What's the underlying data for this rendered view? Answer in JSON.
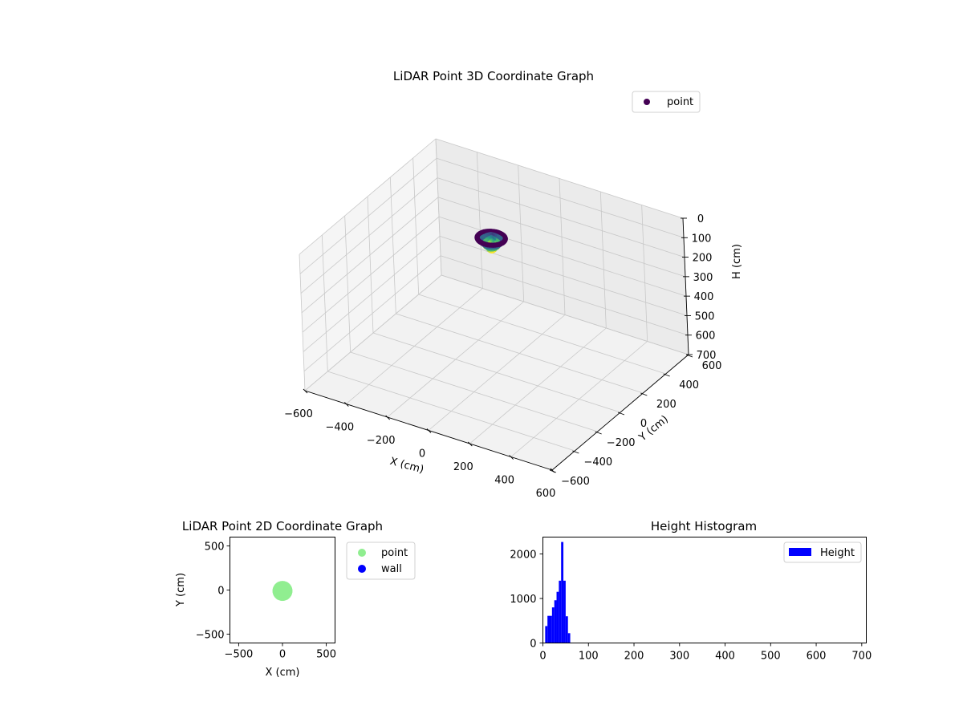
{
  "chart_data": [
    {
      "type": "scatter",
      "projection": "3d",
      "title": "LiDAR Point 3D Coordinate Graph",
      "xlabel": "X (cm)",
      "ylabel": "Y (cm)",
      "zlabel": "H (cm)",
      "xlim": [
        -600,
        600
      ],
      "ylim": [
        -600,
        600
      ],
      "zlim": [
        0,
        700
      ],
      "z_inverted": true,
      "xticks": [
        -600,
        -400,
        -200,
        0,
        200,
        400,
        600
      ],
      "yticks": [
        -600,
        -400,
        -200,
        0,
        200,
        400,
        600
      ],
      "zticks": [
        0,
        100,
        200,
        300,
        400,
        500,
        600,
        700
      ],
      "legend": {
        "position": "top-right",
        "entries": [
          {
            "label": "point",
            "color": "#440154"
          }
        ]
      },
      "colormap": "viridis",
      "series": [
        {
          "name": "point",
          "shape": "ring",
          "center": [
            0,
            0
          ],
          "radius_range": [
            25,
            60
          ],
          "h_range": [
            10,
            60
          ]
        }
      ],
      "grid": true
    },
    {
      "type": "scatter",
      "title": "LiDAR Point 2D Coordinate Graph",
      "xlabel": "X (cm)",
      "ylabel": "Y (cm)",
      "xlim": [
        -600,
        600
      ],
      "ylim": [
        -600,
        600
      ],
      "xticks": [
        -500,
        0,
        500
      ],
      "yticks": [
        -500,
        0,
        500
      ],
      "legend": {
        "position": "outside-right",
        "entries": [
          {
            "label": "point",
            "color": "#90ee90"
          },
          {
            "label": "wall",
            "color": "#0000ff"
          }
        ]
      },
      "series": [
        {
          "name": "point",
          "color": "#90ee90",
          "center": [
            0,
            -10
          ],
          "radius": 110
        },
        {
          "name": "wall",
          "color": "#0000ff",
          "points": []
        }
      ],
      "grid": false
    },
    {
      "type": "bar",
      "subtype": "histogram",
      "title": "Height Histogram",
      "xlabel": "",
      "ylabel": "",
      "xlim": [
        0,
        710
      ],
      "ylim": [
        0,
        2380
      ],
      "xticks": [
        0,
        100,
        200,
        300,
        400,
        500,
        600,
        700
      ],
      "yticks": [
        0,
        1000,
        2000
      ],
      "legend": {
        "position": "top-right",
        "entries": [
          {
            "label": "Height",
            "color": "#0000ff"
          }
        ]
      },
      "bin_width": 5,
      "bins": [
        {
          "x0": 5,
          "x1": 10,
          "value": 380
        },
        {
          "x0": 10,
          "x1": 15,
          "value": 610
        },
        {
          "x0": 15,
          "x1": 20,
          "value": 610
        },
        {
          "x0": 20,
          "x1": 25,
          "value": 800
        },
        {
          "x0": 25,
          "x1": 30,
          "value": 960
        },
        {
          "x0": 30,
          "x1": 35,
          "value": 1150
        },
        {
          "x0": 35,
          "x1": 40,
          "value": 1400
        },
        {
          "x0": 40,
          "x1": 45,
          "value": 2270
        },
        {
          "x0": 45,
          "x1": 50,
          "value": 1400
        },
        {
          "x0": 50,
          "x1": 55,
          "value": 600
        },
        {
          "x0": 55,
          "x1": 60,
          "value": 220
        }
      ],
      "color": "#0000ff"
    }
  ]
}
